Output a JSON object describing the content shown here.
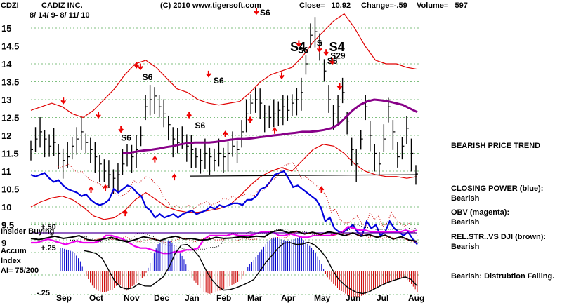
{
  "header": {
    "ticker": "CDZI",
    "company": "CADIZ INC.",
    "date_range": "8/ 14/ 9- 8/ 11/ 10",
    "copyright": "(C) 2010 www.tigersoft.com",
    "close": "Close=   10.92",
    "change": "Change=-.59",
    "volume": "Volume=   597"
  },
  "side_notes": {
    "trend": "BEARISH PRICE TREND",
    "cp_title": "CLOSING POWER (blue):",
    "cp_value": "Bearish",
    "obv_title": "OBV (magenta):",
    "obv_value": "Bearish",
    "rel_title": "REL.STR..VS DJI (brown):",
    "rel_value": "Bearish",
    "accum_note": "Bearish:  Distrubtion Falling."
  },
  "panel_labels": {
    "insider": "Insider Buying",
    "accum_line1": "Accum",
    "accum_line2": "Index",
    "accum_line3": "AI= 75/200",
    "insider_level": "+.50",
    "accum_upper": "+.25",
    "accum_lower": "-.25"
  },
  "chart_data": {
    "type": "line",
    "title": "CADIZ INC.",
    "y_ticks": [
      15,
      14.5,
      14,
      13.5,
      13,
      12.5,
      12,
      11.5,
      11,
      10.5,
      10,
      9.5,
      9
    ],
    "ylim": [
      8.8,
      15.3
    ],
    "x_month_labels": [
      "Sep",
      "Oct",
      "Nov",
      "Dec",
      "Jan",
      "Feb",
      "Mar",
      "Apr",
      "May",
      "Jun",
      "Jul",
      "Aug"
    ],
    "price_close": [
      11.6,
      11.9,
      12.1,
      11.9,
      11.7,
      11.8,
      11.5,
      11.3,
      11.4,
      11.7,
      11.9,
      12.1,
      11.8,
      11.6,
      11.4,
      11.2,
      11.0,
      10.9,
      10.8,
      10.9,
      11.2,
      11.5,
      11.4,
      11.6,
      12.0,
      12.8,
      13.0,
      13.1,
      12.8,
      12.6,
      12.3,
      11.9,
      11.8,
      12.0,
      11.7,
      11.6,
      11.4,
      11.3,
      11.5,
      11.4,
      11.3,
      11.5,
      11.4,
      11.5,
      11.7,
      11.6,
      12.1,
      12.6,
      12.9,
      13.0,
      12.9,
      12.6,
      12.5,
      12.6,
      12.7,
      12.8,
      12.7,
      12.9,
      13.0,
      13.2,
      14.0,
      14.8,
      14.9,
      14.6,
      13.8,
      13.0,
      12.6,
      12.8,
      13.2,
      12.4,
      11.6,
      11.2,
      11.9,
      12.8,
      12.0,
      11.5,
      11.2,
      11.9,
      12.8,
      12.1,
      11.4,
      11.7,
      12.2,
      11.5,
      10.92
    ],
    "closing_power": [
      10.9,
      10.85,
      10.9,
      10.95,
      10.8,
      10.7,
      10.75,
      10.6,
      10.5,
      10.45,
      10.4,
      10.3,
      10.35,
      10.2,
      10.1,
      10.05,
      10.1,
      10.2,
      10.5,
      10.4,
      10.5,
      10.6,
      10.55,
      10.4,
      10.3,
      10.0,
      9.9,
      9.7,
      9.8,
      9.7,
      9.75,
      9.8,
      9.7,
      9.8,
      9.85,
      9.9,
      9.8,
      9.85,
      9.9,
      10.0,
      9.95,
      10.05,
      10.0,
      10.05,
      10.1,
      10.1,
      10.05,
      10.2,
      10.2,
      10.3,
      10.5,
      10.55,
      10.7,
      10.9,
      10.95,
      11.0,
      10.8,
      10.55,
      10.6,
      10.5,
      10.4,
      10.3,
      10.2,
      10.0,
      9.6,
      9.7,
      9.4,
      9.3,
      9.3,
      9.4,
      9.5,
      9.3,
      9.2,
      9.6,
      9.4,
      9.5,
      9.2,
      9.3,
      9.6,
      9.4,
      9.3,
      9.2,
      9.3,
      9.1,
      8.95
    ],
    "obv": [
      9.0,
      9.0,
      9.05,
      9.1,
      9.05,
      9.0,
      8.95,
      9.0,
      9.05,
      9.0,
      9.0,
      9.0,
      9.05,
      9.2,
      9.2,
      9.15,
      9.1,
      9.0,
      8.9,
      8.85,
      8.85,
      8.8,
      8.75,
      8.7,
      8.7,
      8.75,
      8.75,
      8.8,
      8.8,
      8.85,
      9.1,
      9.2,
      9.2,
      9.2,
      9.2,
      9.25,
      9.2,
      9.2,
      9.2,
      9.25,
      9.3,
      9.3,
      9.3,
      9.2,
      9.2,
      9.25,
      9.2,
      9.15,
      9.15,
      9.2,
      9.2,
      9.2,
      9.2,
      9.25,
      9.3,
      9.45,
      9.4,
      9.35,
      9.35,
      9.3,
      9.3,
      9.3,
      9.3,
      9.3,
      9.3,
      9.35,
      9.3,
      9.35
    ],
    "ma_price": [
      11.5,
      11.52,
      11.55,
      11.58,
      11.6,
      11.63,
      11.67,
      11.7,
      11.75,
      11.78,
      11.8,
      11.8,
      11.8,
      11.82,
      11.85,
      11.88,
      11.9,
      11.9,
      11.92,
      11.95,
      11.97,
      12.0,
      12.02,
      12.05,
      12.07,
      12.1,
      12.1,
      12.12,
      12.15,
      12.2,
      12.3,
      12.5,
      12.7,
      12.85,
      12.95,
      13.0,
      12.98,
      12.95,
      12.9,
      12.85,
      12.75,
      12.65
    ],
    "upper_band": [
      12.7,
      12.8,
      12.9,
      12.8,
      12.6,
      12.5,
      12.7,
      13.0,
      13.3,
      13.7,
      14.0,
      14.1,
      13.9,
      13.6,
      13.3,
      13.2,
      13.0,
      12.9,
      12.85,
      12.9,
      12.95,
      13.2,
      13.5,
      13.7,
      13.8,
      13.9,
      14.2,
      14.6,
      14.9,
      15.2,
      15.4,
      15.0,
      14.5,
      14.1,
      14.0,
      14.0,
      13.9,
      13.85
    ],
    "lower_band": [
      10.0,
      10.15,
      10.25,
      10.3,
      10.2,
      10.0,
      9.75,
      9.65,
      9.7,
      9.9,
      10.2,
      10.4,
      10.2,
      10.0,
      9.9,
      9.85,
      9.85,
      9.9,
      9.95,
      10.05,
      10.3,
      10.6,
      10.85,
      11.0,
      11.1,
      11.0,
      11.3,
      11.6,
      11.75,
      11.7,
      11.5,
      11.2,
      11.0,
      10.9,
      10.85,
      10.85,
      10.8,
      10.85
    ],
    "support_line": 10.9,
    "signals": [
      {
        "label": "S6",
        "x": 0.235,
        "y": 11.85
      },
      {
        "label": "S6",
        "x": 0.29,
        "y": 13.55
      },
      {
        "label": "S6",
        "x": 0.425,
        "y": 12.2
      },
      {
        "label": "S6",
        "x": 0.473,
        "y": 13.45
      },
      {
        "label": "S6",
        "x": 0.592,
        "y": 15.35
      },
      {
        "label": "S4",
        "x": 0.67,
        "y": 14.35
      },
      {
        "label": "S6",
        "x": 0.69,
        "y": 14.3
      },
      {
        "label": "S",
        "x": 0.738,
        "y": 14.5
      },
      {
        "label": "S4",
        "x": 0.77,
        "y": 14.35
      },
      {
        "label": "S29",
        "x": 0.773,
        "y": 14.15
      },
      {
        "label": "S6",
        "x": 0.765,
        "y": 14.0
      }
    ],
    "red_down_arrows": [
      [
        0.087,
        12.9
      ],
      [
        0.177,
        12.5
      ],
      [
        0.235,
        12.1
      ],
      [
        0.275,
        13.9
      ],
      [
        0.285,
        13.85
      ],
      [
        0.41,
        12.5
      ],
      [
        0.46,
        13.65
      ],
      [
        0.583,
        15.4
      ],
      [
        0.648,
        13.6
      ],
      [
        0.692,
        14.5
      ],
      [
        0.745,
        14.35
      ],
      [
        0.762,
        14.25
      ],
      [
        0.778,
        14.0
      ],
      [
        0.797,
        13.3
      ]
    ],
    "red_up_arrows": [
      [
        0.158,
        10.55
      ],
      [
        0.195,
        10.6
      ],
      [
        0.246,
        9.9
      ],
      [
        0.322,
        11.4
      ],
      [
        0.372,
        10.9
      ],
      [
        0.503,
        12.1
      ],
      [
        0.567,
        12.5
      ],
      [
        0.63,
        12.2
      ],
      [
        0.75,
        10.55
      ]
    ],
    "insider_series": [
      0.4,
      0.38,
      0.41,
      0.44,
      0.4,
      0.42,
      0.45,
      0.38,
      0.36,
      0.39,
      0.42,
      0.37,
      0.34,
      0.38,
      0.43,
      0.4,
      0.36,
      0.41,
      0.44,
      0.39,
      0.4,
      0.37,
      0.38,
      0.42,
      0.4,
      0.41,
      0.43,
      0.42,
      0.44,
      0.43,
      0.52,
      0.55,
      0.5,
      0.53,
      0.48,
      0.51,
      0.47,
      0.52,
      0.49,
      0.45,
      0.5,
      0.44,
      0.47,
      0.42,
      0.46,
      0.39,
      0.43,
      0.37,
      0.35
    ],
    "accum_index": [
      0.22,
      0.2,
      0.18,
      0.1,
      -0.05,
      -0.15,
      -0.2,
      -0.2,
      -0.18,
      -0.12,
      -0.2,
      -0.15,
      -0.1,
      -0.05,
      0.1,
      0.25,
      0.3,
      0.28,
      0.2,
      0.12,
      -0.05,
      -0.12,
      -0.2,
      -0.22,
      -0.2,
      -0.18,
      -0.15,
      -0.12,
      -0.08,
      0.05,
      0.12,
      0.2,
      0.28,
      0.32,
      0.3,
      0.28,
      0.3,
      0.32,
      0.26,
      0.2,
      0.1,
      -0.05,
      -0.12,
      -0.18,
      -0.22,
      -0.25,
      -0.25,
      -0.22,
      -0.18,
      -0.15,
      -0.12,
      -0.1,
      -0.08,
      -0.06,
      -0.12,
      -0.2
    ]
  }
}
